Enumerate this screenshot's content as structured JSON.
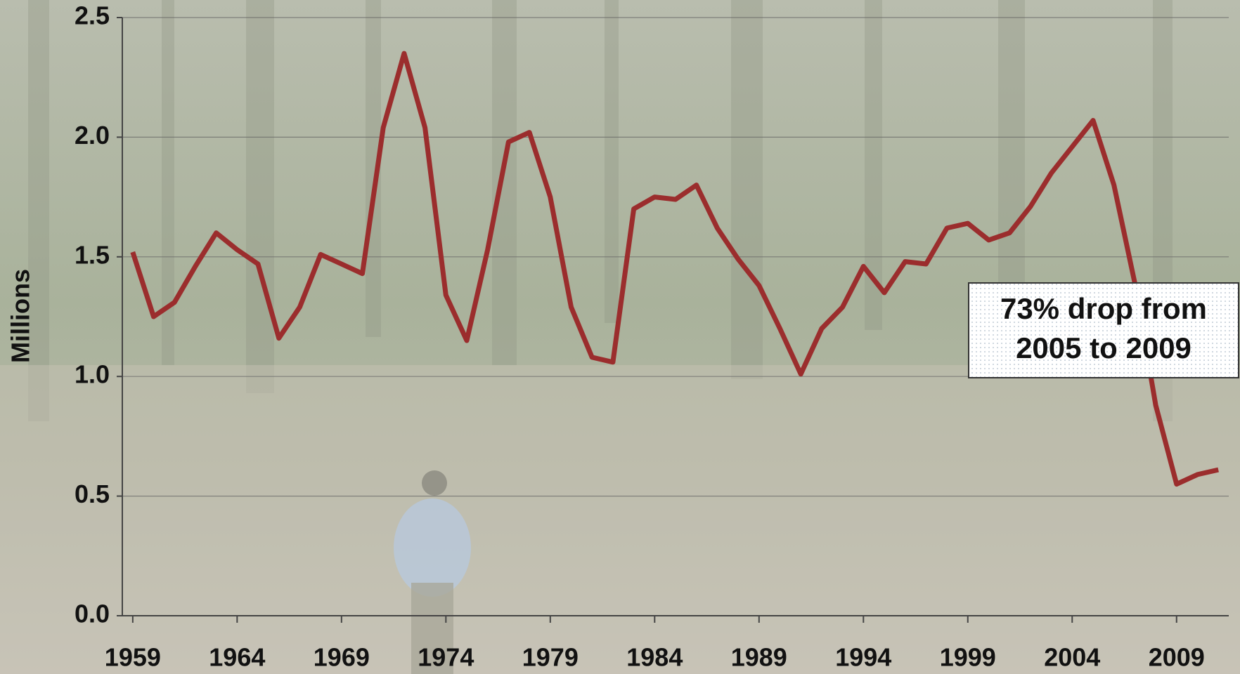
{
  "chart_data": {
    "type": "line",
    "y_label": "Millions",
    "annotation": [
      "73% drop from",
      "2005 to 2009"
    ],
    "x": [
      1959,
      1960,
      1961,
      1962,
      1963,
      1964,
      1965,
      1966,
      1967,
      1968,
      1969,
      1970,
      1971,
      1972,
      1973,
      1974,
      1975,
      1976,
      1977,
      1978,
      1979,
      1980,
      1981,
      1982,
      1983,
      1984,
      1985,
      1986,
      1987,
      1988,
      1989,
      1990,
      1991,
      1992,
      1993,
      1994,
      1995,
      1996,
      1997,
      1998,
      1999,
      2000,
      2001,
      2002,
      2003,
      2004,
      2005,
      2006,
      2007,
      2008,
      2009,
      2010,
      2011
    ],
    "series": [
      {
        "color": "#9b2d2d",
        "values": [
          1.52,
          1.25,
          1.31,
          1.46,
          1.6,
          1.53,
          1.47,
          1.16,
          1.29,
          1.51,
          1.47,
          1.43,
          2.04,
          2.35,
          2.04,
          1.34,
          1.15,
          1.53,
          1.98,
          2.02,
          1.75,
          1.29,
          1.08,
          1.06,
          1.7,
          1.75,
          1.74,
          1.8,
          1.62,
          1.49,
          1.38,
          1.2,
          1.01,
          1.2,
          1.29,
          1.46,
          1.35,
          1.48,
          1.47,
          1.62,
          1.64,
          1.57,
          1.6,
          1.71,
          1.85,
          1.96,
          2.07,
          1.8,
          1.39,
          0.88,
          0.55,
          0.59,
          0.61
        ]
      }
    ],
    "xlim": [
      1958.5,
      2011.5
    ],
    "xticks": [
      1959,
      1964,
      1969,
      1974,
      1979,
      1984,
      1989,
      1994,
      1999,
      2004,
      2009
    ],
    "ylim": [
      0,
      2.5
    ],
    "yticks": [
      {
        "value": 0,
        "label": "0.0"
      },
      0.5,
      {
        "value": 1,
        "label": "1.0"
      },
      1.5,
      {
        "value": 2,
        "label": "2.0"
      },
      2.5
    ],
    "grid": true
  }
}
